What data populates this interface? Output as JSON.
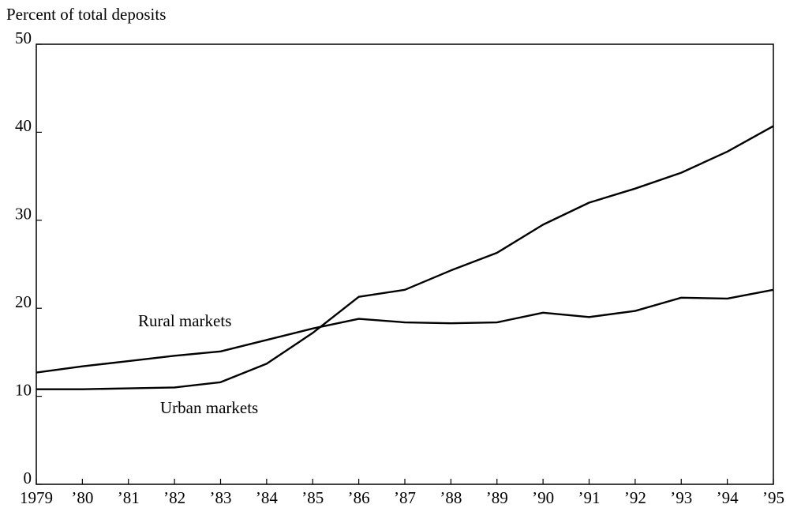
{
  "chart_data": {
    "type": "line",
    "y_axis_label": "Percent of total deposits",
    "categories": [
      "1979",
      "’80",
      "’81",
      "’82",
      "’83",
      "’84",
      "’85",
      "’86",
      "’87",
      "’88",
      "’89",
      "’90",
      "’91",
      "’92",
      "’93",
      "’94",
      "’95"
    ],
    "series": [
      {
        "name": "Rural markets",
        "color": "#000000",
        "values": [
          12.7,
          13.4,
          14.0,
          14.6,
          15.1,
          16.4,
          17.7,
          18.8,
          18.4,
          18.3,
          18.4,
          19.5,
          19.0,
          19.7,
          21.2,
          21.1,
          22.1
        ]
      },
      {
        "name": "Urban markets",
        "color": "#000000",
        "values": [
          10.8,
          10.8,
          10.9,
          11.0,
          11.6,
          13.7,
          17.2,
          21.3,
          22.1,
          24.3,
          26.3,
          29.5,
          32.0,
          33.6,
          35.4,
          37.8,
          40.7
        ]
      }
    ],
    "ylim": [
      0,
      50
    ],
    "yticks": [
      0,
      10,
      20,
      30,
      40,
      50
    ],
    "grid": false
  }
}
